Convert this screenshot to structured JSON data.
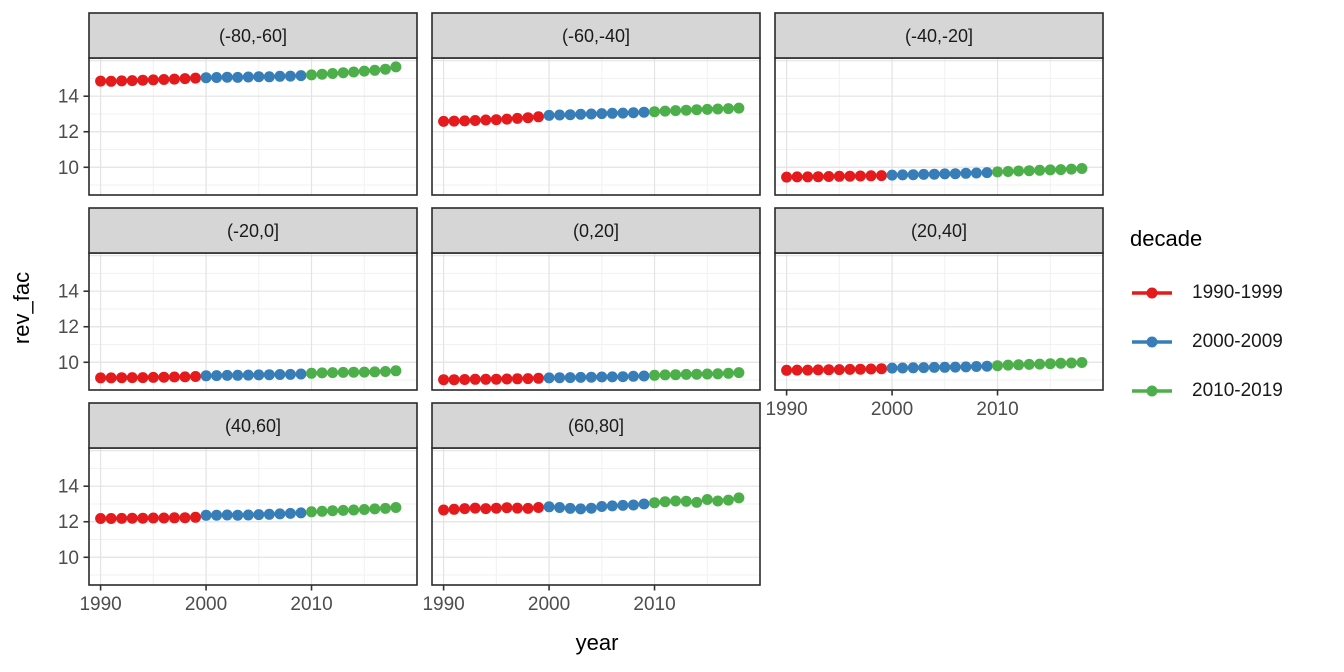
{
  "chart_data": {
    "type": "scatter",
    "title": "",
    "xlabel": "year",
    "ylabel": "rev_fac",
    "legend_title": "decade",
    "legend_position": "right",
    "grid": true,
    "facet_layout": {
      "columns": 3,
      "rows": 3
    },
    "x_ticks": [
      1990,
      2000,
      2010
    ],
    "y_ticks": [
      10,
      12,
      14
    ],
    "x_major_grid": [
      1990,
      2000,
      2010,
      2020
    ],
    "y_major_grid": [
      10,
      12,
      14,
      16
    ],
    "x_minor_grid": [
      1995,
      2005,
      2015
    ],
    "y_minor_grid": [
      9,
      11,
      13,
      15
    ],
    "x_range": [
      1988.9,
      2020.0
    ],
    "y_range": [
      8.44,
      16.15
    ],
    "years": [
      1990,
      1991,
      1992,
      1993,
      1994,
      1995,
      1996,
      1997,
      1998,
      1999,
      2000,
      2001,
      2002,
      2003,
      2004,
      2005,
      2006,
      2007,
      2008,
      2009,
      2010,
      2011,
      2012,
      2013,
      2014,
      2015,
      2016,
      2017,
      2018
    ],
    "decades": [
      {
        "label": "1990-1999",
        "start": 1990,
        "end": 1999,
        "color": "#E41A1C"
      },
      {
        "label": "2000-2009",
        "start": 2000,
        "end": 2009,
        "color": "#377EB8"
      },
      {
        "label": "2010-2019",
        "start": 2010,
        "end": 2019,
        "color": "#4DAF4A"
      }
    ],
    "facets": [
      {
        "label": "(-80,-60]",
        "values": [
          14.85,
          14.84,
          14.86,
          14.88,
          14.9,
          14.92,
          14.94,
          14.96,
          14.99,
          15.02,
          15.04,
          15.05,
          15.07,
          15.06,
          15.08,
          15.1,
          15.09,
          15.12,
          15.13,
          15.16,
          15.2,
          15.24,
          15.28,
          15.32,
          15.36,
          15.41,
          15.46,
          15.52,
          15.65
        ]
      },
      {
        "label": "(-60,-40]",
        "values": [
          12.58,
          12.6,
          12.61,
          12.63,
          12.66,
          12.68,
          12.71,
          12.75,
          12.79,
          12.84,
          12.92,
          12.94,
          12.96,
          12.98,
          13.0,
          13.02,
          13.04,
          13.05,
          13.07,
          13.1,
          13.13,
          13.16,
          13.19,
          13.21,
          13.24,
          13.26,
          13.28,
          13.3,
          13.33
        ]
      },
      {
        "label": "(-40,-20]",
        "values": [
          9.45,
          9.46,
          9.46,
          9.47,
          9.48,
          9.49,
          9.5,
          9.51,
          9.52,
          9.53,
          9.56,
          9.57,
          9.58,
          9.6,
          9.61,
          9.63,
          9.64,
          9.66,
          9.68,
          9.7,
          9.74,
          9.76,
          9.79,
          9.81,
          9.83,
          9.85,
          9.87,
          9.9,
          9.93
        ]
      },
      {
        "label": "(-20,0]",
        "values": [
          9.12,
          9.12,
          9.13,
          9.14,
          9.14,
          9.15,
          9.16,
          9.17,
          9.18,
          9.2,
          9.24,
          9.25,
          9.26,
          9.27,
          9.28,
          9.29,
          9.3,
          9.31,
          9.32,
          9.34,
          9.38,
          9.4,
          9.42,
          9.43,
          9.44,
          9.45,
          9.46,
          9.48,
          9.52
        ]
      },
      {
        "label": "(0,20]",
        "values": [
          9.02,
          9.02,
          9.03,
          9.04,
          9.04,
          9.05,
          9.06,
          9.07,
          9.08,
          9.1,
          9.12,
          9.13,
          9.14,
          9.15,
          9.16,
          9.17,
          9.18,
          9.19,
          9.21,
          9.23,
          9.27,
          9.29,
          9.3,
          9.32,
          9.33,
          9.34,
          9.35,
          9.38,
          9.42
        ]
      },
      {
        "label": "(20,40]",
        "values": [
          9.55,
          9.56,
          9.56,
          9.57,
          9.58,
          9.59,
          9.6,
          9.61,
          9.62,
          9.64,
          9.67,
          9.68,
          9.69,
          9.7,
          9.71,
          9.72,
          9.73,
          9.74,
          9.76,
          9.78,
          9.81,
          9.84,
          9.86,
          9.88,
          9.9,
          9.92,
          9.94,
          9.96,
          9.99
        ]
      },
      {
        "label": "(40,60]",
        "values": [
          12.18,
          12.18,
          12.19,
          12.2,
          12.2,
          12.21,
          12.21,
          12.22,
          12.23,
          12.25,
          12.36,
          12.37,
          12.38,
          12.37,
          12.38,
          12.4,
          12.42,
          12.44,
          12.47,
          12.5,
          12.56,
          12.59,
          12.62,
          12.64,
          12.66,
          12.69,
          12.72,
          12.75,
          12.8
        ]
      },
      {
        "label": "(60,80]",
        "values": [
          12.66,
          12.7,
          12.74,
          12.77,
          12.74,
          12.76,
          12.79,
          12.77,
          12.75,
          12.8,
          12.84,
          12.8,
          12.75,
          12.72,
          12.76,
          12.86,
          12.89,
          12.92,
          12.94,
          13.0,
          13.07,
          13.13,
          13.17,
          13.15,
          13.09,
          13.25,
          13.17,
          13.22,
          13.34
        ]
      }
    ],
    "colors": {
      "strip_fill": "#D6D6D6",
      "strip_text": "#1A1A1A",
      "panel_fill": "#FFFFFF",
      "panel_border": "#2A2A2A",
      "grid_major": "#E3E3E3",
      "grid_minor": "#F1F1F1",
      "tick_mark": "#333333",
      "axis_text": "#4D4D4D",
      "axis_title": "#000000"
    }
  }
}
